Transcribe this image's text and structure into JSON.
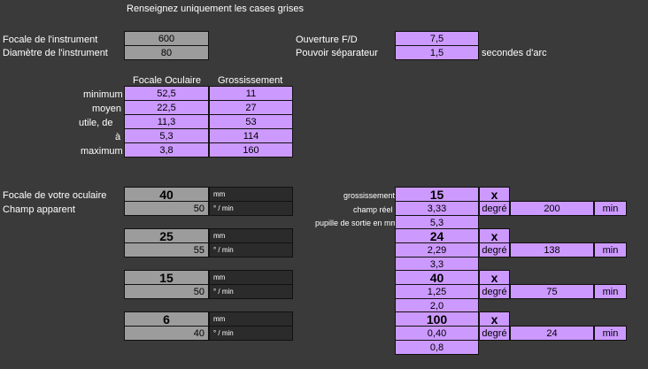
{
  "instruction": "Renseignez uniquement les cases grises",
  "instrument": {
    "focale_label": "Focale de l'instrument",
    "focale_value": "600",
    "diametre_label": "Diamètre de l'instrument",
    "diametre_value": "80",
    "ouverture_label": "Ouverture F/D",
    "ouverture_value": "7,5",
    "pouvoir_label": "Pouvoir séparateur",
    "pouvoir_value": "1,5",
    "pouvoir_unit": "secondes d'arc"
  },
  "table": {
    "col1": "Focale Oculaire",
    "col2": "Grossissement",
    "rows": [
      {
        "label": "minimum",
        "focale": "52,5",
        "gross": "11"
      },
      {
        "label": "moyen",
        "focale": "22,5",
        "gross": "27"
      },
      {
        "label": "utile, de",
        "focale": "11,3",
        "gross": "53"
      },
      {
        "label": "à",
        "focale": "5,3",
        "gross": "114"
      },
      {
        "label": "maximum",
        "focale": "3,8",
        "gross": "160"
      }
    ]
  },
  "eyepieces": {
    "focale_label": "Focale de votre oculaire",
    "champ_label": "Champ apparent",
    "gross_label": "grossissement",
    "champ_reel_label": "champ réel",
    "pupille_label": "pupille de sortie en mm",
    "mm_unit": "mm",
    "deg_min_unit": "° / min",
    "degre_unit": "degré",
    "min_unit": "min",
    "x_unit": "x",
    "items": [
      {
        "focale": "40",
        "champ": "50",
        "gross": "15",
        "champ_deg": "3,33",
        "champ_min": "200",
        "pupille": "5,3"
      },
      {
        "focale": "25",
        "champ": "55",
        "gross": "24",
        "champ_deg": "2,29",
        "champ_min": "138",
        "pupille": "3,3"
      },
      {
        "focale": "15",
        "champ": "50",
        "gross": "40",
        "champ_deg": "1,25",
        "champ_min": "75",
        "pupille": "2,0"
      },
      {
        "focale": "6",
        "champ": "40",
        "gross": "100",
        "champ_deg": "0,40",
        "champ_min": "24",
        "pupille": "0,8"
      }
    ]
  }
}
